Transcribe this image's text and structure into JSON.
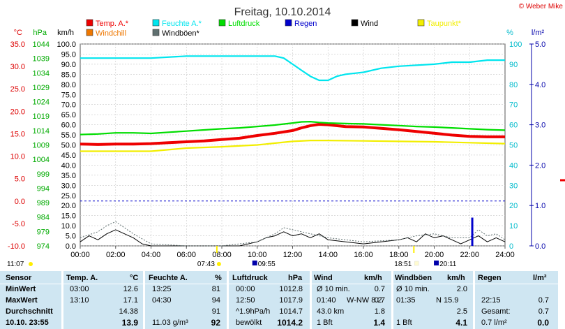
{
  "copyright": "© Weber Mike",
  "chart_data": {
    "type": "line",
    "title": "Freitag, 10.10.2014",
    "x_ticks": [
      "00:00",
      "02:00",
      "04:00",
      "06:00",
      "08:00",
      "10:00",
      "12:00",
      "14:00",
      "16:00",
      "18:00",
      "20:00",
      "22:00",
      "24:00"
    ],
    "axes": {
      "temp": {
        "unit": "°C",
        "range": [
          -10,
          35
        ],
        "ticks": [
          "35.0",
          "30.0",
          "25.0",
          "20.0",
          "15.0",
          "10.0",
          "5.0",
          "0.0",
          "-5.0",
          "-10.0"
        ]
      },
      "pressure": {
        "unit": "hPa",
        "range": [
          974,
          1044
        ],
        "ticks": [
          "1044",
          "1039",
          "1034",
          "1029",
          "1024",
          "1019",
          "1014",
          "1009",
          "1004",
          "999",
          "994",
          "989",
          "984",
          "979",
          "974"
        ]
      },
      "wind": {
        "unit": "km/h",
        "range": [
          0,
          100
        ],
        "ticks": [
          "100.0",
          "95.0",
          "90.0",
          "85.0",
          "80.0",
          "75.0",
          "70.0",
          "65.0",
          "60.0",
          "55.0",
          "50.0",
          "45.0",
          "40.0",
          "35.0",
          "30.0",
          "25.0",
          "20.0",
          "15.0",
          "10.0",
          "5.0",
          "0.0"
        ]
      },
      "humidity": {
        "unit": "%",
        "range": [
          0,
          100
        ],
        "ticks": [
          "100",
          "90",
          "80",
          "70",
          "60",
          "50",
          "40",
          "30",
          "20",
          "10",
          "0"
        ]
      },
      "rain": {
        "unit": "l/m²",
        "range": [
          0,
          5
        ],
        "ticks": [
          "5.0",
          "4.0",
          "3.0",
          "2.0",
          "1.0",
          "0.0"
        ]
      }
    },
    "legend": [
      {
        "label": "Temp. A.*",
        "color": "#ee0000"
      },
      {
        "label": "Feuchte A.*",
        "color": "#00e5ee"
      },
      {
        "label": "Luftdruck",
        "color": "#00dd00"
      },
      {
        "label": "Regen",
        "color": "#0000cc"
      },
      {
        "label": "Wind",
        "color": "#000000"
      },
      {
        "label": "Taupunkt*",
        "color": "#f2ee00"
      },
      {
        "label": "Windchill",
        "color": "#ee7700"
      },
      {
        "label": "Windböen*",
        "color": "#607070"
      }
    ],
    "series": [
      {
        "name": "Temp. A.*",
        "axis": "temp",
        "color": "#ee0000",
        "x": [
          0,
          1,
          2,
          3,
          4,
          5,
          6,
          7,
          8,
          9,
          10,
          11,
          12,
          12.5,
          13,
          13.5,
          14,
          15,
          16,
          17,
          18,
          19,
          20,
          21,
          22,
          23,
          24
        ],
        "y": [
          12.7,
          12.6,
          12.7,
          12.7,
          12.8,
          13.0,
          13.2,
          13.4,
          13.7,
          14.0,
          14.6,
          15.1,
          15.7,
          16.3,
          16.8,
          17.1,
          17.0,
          16.6,
          16.5,
          16.2,
          15.9,
          15.5,
          15.1,
          14.7,
          14.4,
          14.3,
          14.3
        ]
      },
      {
        "name": "Feuchte A.*",
        "axis": "humidity",
        "color": "#00e5ee",
        "x": [
          0,
          2,
          4,
          6,
          8,
          10,
          11,
          11.5,
          12,
          12.5,
          13,
          13.5,
          14,
          14.5,
          15,
          16,
          17,
          18,
          20,
          21,
          22,
          23,
          24
        ],
        "y": [
          93,
          93,
          93,
          94,
          94,
          94,
          94,
          93,
          90,
          87,
          84,
          82,
          82,
          84,
          85,
          86,
          88,
          89,
          90,
          91,
          91,
          92,
          92
        ]
      },
      {
        "name": "Luftdruck",
        "axis": "pressure",
        "color": "#00dd00",
        "x": [
          0,
          1,
          2,
          3,
          4,
          5,
          6,
          7,
          8,
          9,
          10,
          11,
          12,
          12.5,
          13,
          13.5,
          14,
          15,
          16,
          17,
          18,
          19,
          20,
          21,
          22,
          23,
          24
        ],
        "y": [
          1012.6,
          1012.8,
          1013.2,
          1013.2,
          1013.0,
          1013.4,
          1013.8,
          1014.2,
          1014.6,
          1014.9,
          1015.4,
          1015.9,
          1016.6,
          1017.0,
          1017.1,
          1016.8,
          1016.6,
          1016.4,
          1016.3,
          1016.0,
          1015.7,
          1015.4,
          1015.2,
          1014.9,
          1014.6,
          1014.3,
          1014.1
        ]
      },
      {
        "name": "Taupunkt*",
        "axis": "temp",
        "color": "#f2ee00",
        "x": [
          0,
          2,
          4,
          6,
          8,
          10,
          12,
          13,
          14,
          16,
          18,
          20,
          22,
          24
        ],
        "y": [
          11.1,
          11.1,
          11.1,
          11.8,
          12.1,
          12.5,
          13.3,
          13.5,
          13.5,
          13.4,
          13.3,
          13.2,
          13.0,
          12.8
        ]
      },
      {
        "name": "Wind",
        "axis": "wind",
        "color": "#000000",
        "x": [
          0,
          0.5,
          1,
          1.5,
          2,
          2.5,
          3,
          3.5,
          4,
          5,
          6,
          7,
          8,
          9,
          10,
          10.5,
          11,
          11.5,
          12,
          12.5,
          13,
          13.5,
          14,
          15,
          16,
          17,
          18,
          18.5,
          19,
          19.5,
          20,
          20.5,
          21,
          21.5,
          22,
          22.5,
          23,
          23.5,
          24
        ],
        "y": [
          2,
          5,
          3,
          6,
          8,
          6,
          4,
          1,
          0,
          0,
          0,
          0,
          0,
          0,
          2,
          4,
          5,
          7,
          5,
          6,
          4,
          6,
          3,
          2,
          1,
          2,
          3,
          4,
          2,
          6,
          4,
          5,
          3,
          1,
          3,
          5,
          2,
          4,
          2
        ]
      },
      {
        "name": "Windböen*",
        "axis": "wind",
        "color": "#607070",
        "x": [
          0,
          1,
          1.5,
          2,
          2.5,
          3,
          4,
          6,
          8,
          10,
          11,
          11.5,
          12,
          13,
          14,
          16,
          18,
          19,
          20,
          21,
          22,
          22.5,
          23,
          23.5,
          24
        ],
        "y": [
          4,
          7,
          10,
          12,
          9,
          6,
          1,
          0,
          0,
          2,
          6,
          9,
          8,
          6,
          4,
          2,
          3,
          5,
          6,
          4,
          4,
          8,
          5,
          6,
          3
        ]
      },
      {
        "name": "Regen",
        "axis": "rain",
        "color": "#0000cc",
        "x": [
          22.15
        ],
        "y": [
          0.7
        ]
      }
    ],
    "time_markers": {
      "left": "11:07",
      "sunrise": "07:43",
      "moonset": "09:55",
      "sunset": "18:51",
      "moonrise": "20:11"
    }
  },
  "stats": {
    "headers": {
      "sensor": "Sensor",
      "temp": "Temp. A.",
      "temp_unit": "°C",
      "hum": "Feuchte A.",
      "hum_unit": "%",
      "press": "Luftdruck",
      "press_unit": "hPa",
      "wind": "Wind",
      "wind_unit": "km/h",
      "gust": "Windböen",
      "gust_unit": "km/h",
      "rain": "Regen",
      "rain_unit": "l/m²"
    },
    "rows": [
      {
        "label": "MinWert",
        "temp_time": "03:00",
        "temp_val": "12.6",
        "hum_time": "13:25",
        "hum_val": "81",
        "press_time": "00:00",
        "press_val": "1012.8",
        "wind_time": "Ø 10 min.",
        "wind_val": "0.7",
        "gust_time": "Ø 10 min.",
        "gust_val": "2.0",
        "rain_time": "",
        "rain_val": ""
      },
      {
        "label": "MaxWert",
        "temp_time": "13:10",
        "temp_val": "17.1",
        "hum_time": "04:30",
        "hum_val": "94",
        "press_time": "12:50",
        "press_val": "1017.9",
        "wind_time": "01:40",
        "wind_dir": "W-NW 8.2",
        "wind_val": "0.7",
        "gust_time": "01:35",
        "gust_dir": "N 15.9",
        "gust_val": "",
        "rain_time": "22:15",
        "rain_val": "0.7"
      },
      {
        "label": "Durchschnitt",
        "temp_time": "",
        "temp_val": "14.38",
        "hum_time": "",
        "hum_val": "91",
        "press_time": "^1.9hPa/h",
        "press_val": "1014.7",
        "wind_time": "43.0 km",
        "wind_val": "1.8",
        "gust_time": "",
        "gust_val": "2.5",
        "rain_time": "Gesamt:",
        "rain_val": "0.7"
      },
      {
        "label": "10.10. 23:55",
        "temp_time": "",
        "temp_val": "13.9",
        "hum_time": "11.03 g/m³",
        "hum_val": "92",
        "press_time": "bewölkt",
        "press_val": "1014.2",
        "wind_time": "1 Bft",
        "wind_val": "1.4",
        "gust_time": "1 Bft",
        "gust_val": "4.1",
        "rain_time": "0.7 l/m²",
        "rain_val": "0.0"
      }
    ]
  }
}
